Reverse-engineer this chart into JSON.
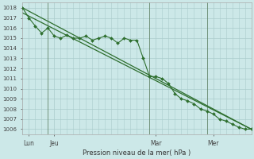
{
  "background_color": "#cce8e8",
  "grid_color": "#aacccc",
  "line_color": "#2d6e2d",
  "xlabel": "Pression niveau de la mer( hPa )",
  "ylim": [
    1005.5,
    1018.5
  ],
  "yticks": [
    1006,
    1007,
    1008,
    1009,
    1010,
    1011,
    1012,
    1013,
    1014,
    1015,
    1016,
    1017,
    1018
  ],
  "xlim": [
    0,
    72
  ],
  "xtick_positions": [
    2,
    10,
    42,
    60
  ],
  "xtick_labels": [
    "Lun",
    "Jeu",
    "Mar",
    "Mer"
  ],
  "vline_positions": [
    8,
    40,
    58
  ],
  "s1x": [
    0,
    2,
    4,
    6,
    8,
    10,
    12,
    14,
    16,
    18,
    20,
    22,
    24,
    26,
    28,
    30,
    32,
    34,
    36,
    38,
    40,
    42,
    44,
    46,
    48,
    50,
    52,
    54,
    56,
    58,
    60,
    62,
    64,
    66,
    68,
    70,
    72
  ],
  "s1y": [
    1018.0,
    1017.0,
    1016.2,
    1015.5,
    1016.0,
    1015.2,
    1015.0,
    1015.3,
    1015.0,
    1015.0,
    1015.2,
    1014.8,
    1015.0,
    1015.2,
    1015.0,
    1014.5,
    1015.0,
    1014.8,
    1014.8,
    1013.0,
    1011.2,
    1011.2,
    1011.0,
    1010.5,
    1009.5,
    1009.0,
    1008.8,
    1008.5,
    1008.0,
    1007.8,
    1007.5,
    1007.0,
    1006.8,
    1006.5,
    1006.2,
    1006.0,
    1006.0
  ],
  "s2x": [
    0,
    72
  ],
  "s2y": [
    1018.0,
    1006.0
  ],
  "s3x": [
    0,
    72
  ],
  "s3y": [
    1017.5,
    1006.0
  ]
}
